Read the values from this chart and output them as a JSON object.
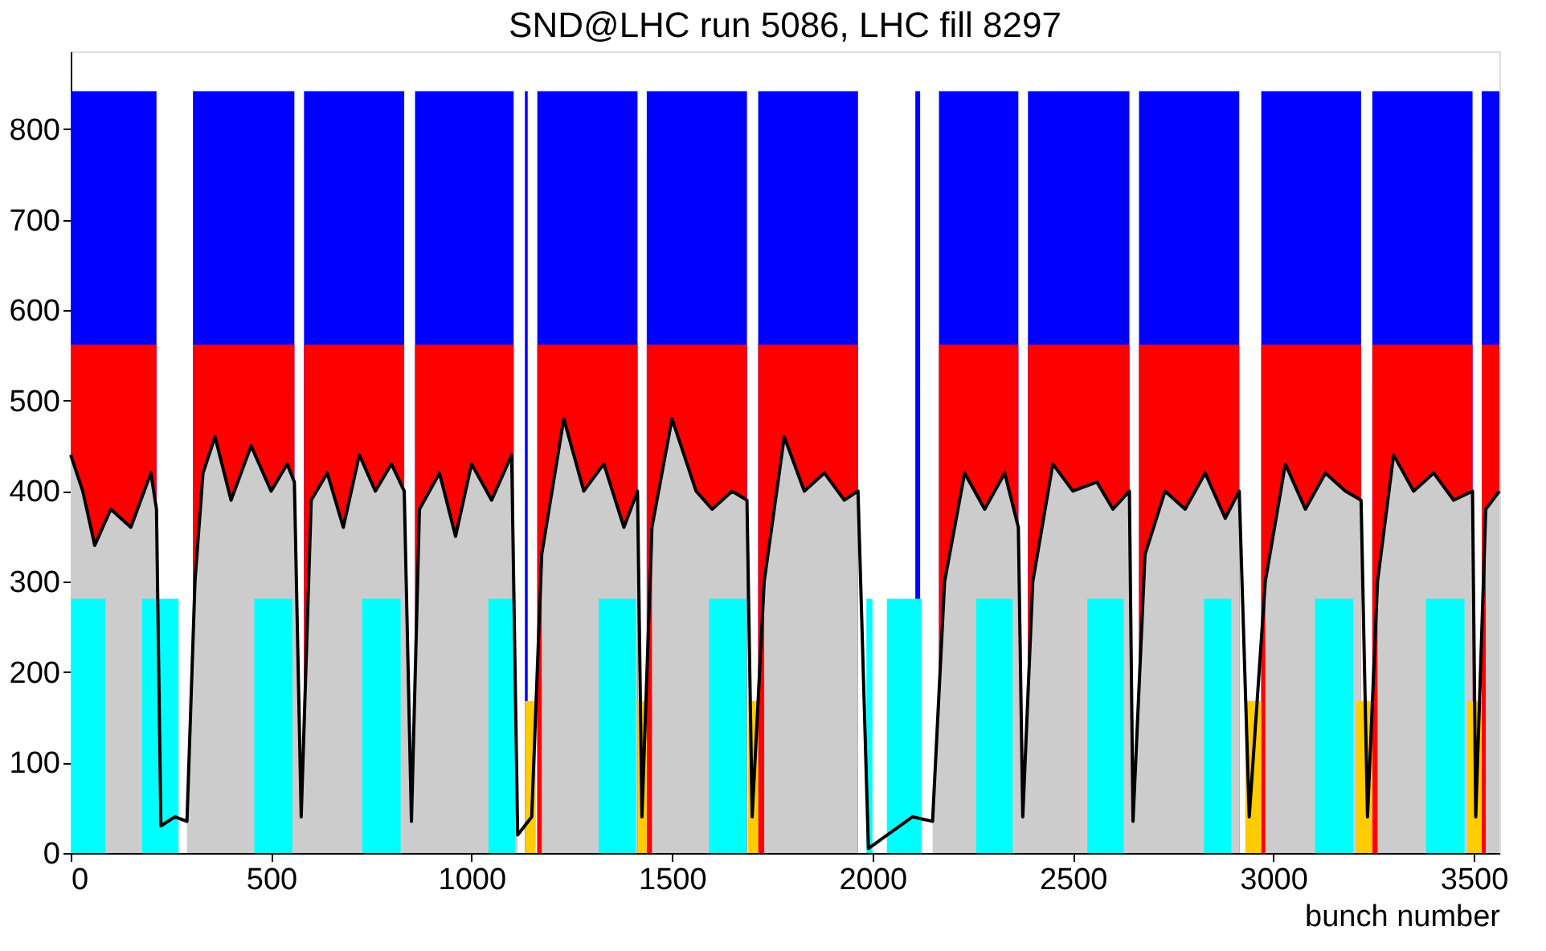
{
  "chart_data": {
    "type": "area",
    "title": "SND@LHC run 5086, LHC fill 8297",
    "xlabel": "bunch number",
    "xlim": [
      0,
      3564
    ],
    "xticks": [
      0,
      500,
      1000,
      1500,
      2000,
      2500,
      3000,
      3500
    ],
    "ylim": [
      0,
      886
    ],
    "yticks": [
      0,
      100,
      200,
      300,
      400,
      500,
      600,
      700,
      800
    ],
    "grid": false,
    "series": [
      {
        "color": "#0000ff",
        "x": [
          0,
          214,
          214,
          305,
          305,
          558,
          558,
          582,
          582,
          832,
          832,
          859,
          859,
          1105,
          1105,
          1133,
          1133,
          1140,
          1140,
          1164,
          1164,
          1414,
          1414,
          1437,
          1437,
          1687,
          1687,
          1715,
          1715,
          1964,
          1964,
          2107,
          2107,
          2119,
          2119,
          2166,
          2166,
          2364,
          2364,
          2388,
          2388,
          2641,
          2641,
          2665,
          2665,
          2915,
          2915,
          2970,
          2970,
          3219,
          3219,
          3247,
          3247,
          3497,
          3497,
          3520,
          3520,
          3564
        ],
        "values": [
          842,
          842,
          0,
          0,
          842,
          842,
          0,
          0,
          842,
          842,
          0,
          0,
          842,
          842,
          0,
          0,
          842,
          842,
          0,
          0,
          842,
          842,
          0,
          0,
          842,
          842,
          0,
          0,
          842,
          842,
          0,
          0,
          842,
          842,
          0,
          0,
          842,
          842,
          0,
          0,
          842,
          842,
          0,
          0,
          842,
          842,
          0,
          0,
          842,
          842,
          0,
          0,
          842,
          842,
          0,
          0,
          842,
          842
        ]
      },
      {
        "color": "#ff0000",
        "x": [
          0,
          214,
          214,
          305,
          305,
          558,
          558,
          582,
          582,
          832,
          832,
          859,
          859,
          1105,
          1105,
          1164,
          1164,
          1414,
          1414,
          1437,
          1437,
          1687,
          1687,
          1715,
          1715,
          1964,
          1964,
          2166,
          2166,
          2364,
          2364,
          2388,
          2388,
          2641,
          2641,
          2665,
          2665,
          2915,
          2915,
          2970,
          2970,
          3219,
          3219,
          3247,
          3247,
          3497,
          3497,
          3520,
          3520,
          3564
        ],
        "values": [
          562,
          562,
          0,
          0,
          562,
          562,
          0,
          0,
          562,
          562,
          0,
          0,
          562,
          562,
          0,
          0,
          562,
          562,
          0,
          0,
          562,
          562,
          0,
          0,
          562,
          562,
          0,
          0,
          562,
          562,
          0,
          0,
          562,
          562,
          0,
          0,
          562,
          562,
          0,
          0,
          562,
          562,
          0,
          0,
          562,
          562,
          0,
          0,
          562,
          562
        ]
      },
      {
        "color": "#cccccc",
        "x": [
          0,
          30,
          60,
          100,
          150,
          200,
          214,
          225,
          260,
          290,
          310,
          330,
          360,
          400,
          450,
          500,
          540,
          558,
          575,
          600,
          640,
          680,
          720,
          760,
          800,
          832,
          850,
          870,
          920,
          960,
          1000,
          1050,
          1100,
          1115,
          1150,
          1175,
          1230,
          1280,
          1330,
          1380,
          1414,
          1425,
          1450,
          1500,
          1560,
          1600,
          1650,
          1687,
          1700,
          1730,
          1780,
          1830,
          1880,
          1930,
          1964,
          1990,
          2100,
          2150,
          2180,
          2230,
          2280,
          2330,
          2364,
          2375,
          2400,
          2450,
          2500,
          2560,
          2600,
          2641,
          2650,
          2680,
          2730,
          2780,
          2830,
          2880,
          2915,
          2940,
          2980,
          3030,
          3080,
          3130,
          3180,
          3219,
          3235,
          3260,
          3300,
          3350,
          3400,
          3450,
          3497,
          3505,
          3530,
          3564
        ],
        "values": [
          440,
          400,
          340,
          380,
          360,
          420,
          380,
          null,
          null,
          35,
          300,
          420,
          460,
          390,
          450,
          400,
          430,
          410,
          40,
          390,
          420,
          360,
          440,
          400,
          430,
          400,
          35,
          380,
          420,
          350,
          430,
          390,
          440,
          20,
          null,
          330,
          480,
          400,
          430,
          360,
          400,
          null,
          360,
          480,
          400,
          380,
          400,
          390,
          null,
          300,
          460,
          400,
          420,
          390,
          400,
          null,
          null,
          35,
          300,
          420,
          380,
          420,
          360,
          40,
          300,
          430,
          400,
          410,
          380,
          400,
          35,
          330,
          400,
          380,
          420,
          370,
          400,
          null,
          300,
          430,
          380,
          420,
          400,
          390,
          null,
          300,
          440,
          400,
          420,
          390,
          400,
          null,
          380,
          400
        ]
      },
      {
        "type": "line",
        "color": "#000000",
        "x": [
          0,
          30,
          60,
          100,
          150,
          200,
          214,
          225,
          260,
          290,
          310,
          330,
          360,
          400,
          450,
          500,
          540,
          558,
          575,
          600,
          640,
          680,
          720,
          760,
          800,
          832,
          850,
          870,
          920,
          960,
          1000,
          1050,
          1100,
          1115,
          1150,
          1175,
          1230,
          1280,
          1330,
          1380,
          1414,
          1425,
          1450,
          1500,
          1560,
          1600,
          1650,
          1687,
          1700,
          1730,
          1780,
          1830,
          1880,
          1930,
          1964,
          1990,
          2100,
          2150,
          2180,
          2230,
          2280,
          2330,
          2364,
          2375,
          2400,
          2450,
          2500,
          2560,
          2600,
          2641,
          2650,
          2680,
          2730,
          2780,
          2830,
          2880,
          2915,
          2940,
          2980,
          3030,
          3080,
          3130,
          3180,
          3219,
          3235,
          3260,
          3300,
          3350,
          3400,
          3450,
          3497,
          3505,
          3530,
          3564
        ],
        "values": [
          440,
          400,
          340,
          380,
          360,
          420,
          380,
          30,
          40,
          35,
          300,
          420,
          460,
          390,
          450,
          400,
          430,
          410,
          40,
          390,
          420,
          360,
          440,
          400,
          430,
          400,
          35,
          380,
          420,
          350,
          430,
          390,
          440,
          20,
          40,
          330,
          480,
          400,
          430,
          360,
          400,
          40,
          360,
          480,
          400,
          380,
          400,
          390,
          40,
          300,
          460,
          400,
          420,
          390,
          400,
          5,
          40,
          35,
          300,
          420,
          380,
          420,
          360,
          40,
          300,
          430,
          400,
          410,
          380,
          400,
          35,
          330,
          400,
          380,
          420,
          370,
          400,
          40,
          300,
          430,
          380,
          420,
          400,
          390,
          40,
          300,
          440,
          400,
          420,
          390,
          400,
          40,
          380,
          400
        ]
      },
      {
        "color": "#00ffff",
        "x": [
          0,
          0,
          87,
          87,
          178,
          178,
          269,
          269,
          458,
          458,
          553,
          553,
          727,
          727,
          823,
          823,
          1042,
          1042,
          1109,
          1109,
          1317,
          1317,
          1410,
          1410,
          1592,
          1592,
          1686,
          1686,
          1985,
          1985,
          2000,
          2000,
          2036,
          2036,
          2123,
          2123,
          2259,
          2259,
          2350,
          2350,
          2536,
          2536,
          2627,
          2627,
          2827,
          2827,
          2895,
          2895,
          3104,
          3104,
          3199,
          3199,
          3381,
          3381,
          3477,
          3477
        ],
        "values": [
          0,
          281,
          281,
          0,
          0,
          281,
          281,
          0,
          0,
          281,
          281,
          0,
          0,
          281,
          281,
          0,
          0,
          281,
          281,
          0,
          0,
          281,
          281,
          0,
          0,
          281,
          281,
          0,
          0,
          281,
          281,
          0,
          0,
          281,
          281,
          0,
          0,
          281,
          281,
          0,
          0,
          281,
          281,
          0,
          0,
          281,
          281,
          0,
          0,
          281,
          281,
          0,
          0,
          281,
          281,
          0
        ]
      },
      {
        "color": "#ffcc00",
        "x": [
          1133,
          1133,
          1160,
          1160,
          1414,
          1414,
          1437,
          1437,
          1690,
          1690,
          1715,
          1715,
          2930,
          2930,
          2970,
          2970,
          3207,
          3207,
          3247,
          3247,
          3485,
          3485,
          3520,
          3520
        ],
        "values": [
          0,
          168,
          168,
          0,
          0,
          168,
          168,
          0,
          0,
          168,
          168,
          0,
          0,
          168,
          168,
          0,
          0,
          168,
          168,
          0,
          0,
          168,
          168,
          0
        ]
      }
    ]
  }
}
